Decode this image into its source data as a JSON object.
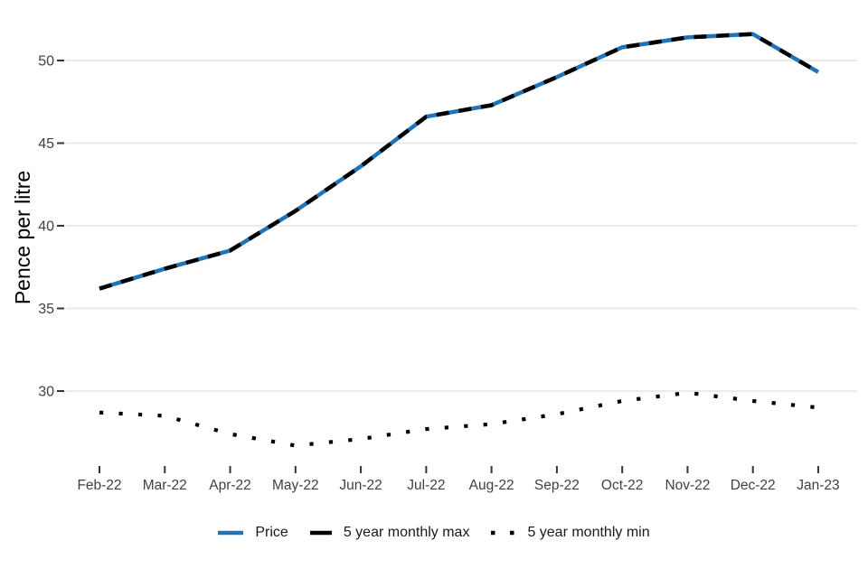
{
  "chart_data": {
    "type": "line",
    "title": "",
    "xlabel": "",
    "ylabel": "Pence per litre",
    "categories": [
      "Feb-22",
      "Mar-22",
      "Apr-22",
      "May-22",
      "Jun-22",
      "Jul-22",
      "Aug-22",
      "Sep-22",
      "Oct-22",
      "Nov-22",
      "Dec-22",
      "Jan-23"
    ],
    "series": [
      {
        "name": "Price",
        "style": "solid",
        "color": "#2173b7",
        "values": [
          36.2,
          37.4,
          38.5,
          40.9,
          43.6,
          46.6,
          47.3,
          49.0,
          50.8,
          51.4,
          51.6,
          49.3
        ]
      },
      {
        "name": "5 year monthly max",
        "style": "dashed",
        "color": "#000000",
        "values": [
          36.2,
          37.4,
          38.5,
          40.9,
          43.6,
          46.6,
          47.3,
          49.0,
          50.8,
          51.4,
          51.6,
          49.3
        ]
      },
      {
        "name": "5 year monthly min",
        "style": "dotted",
        "color": "#000000",
        "values": [
          28.7,
          28.5,
          27.4,
          26.7,
          27.1,
          27.7,
          28.0,
          28.6,
          29.4,
          29.9,
          29.4,
          29.0
        ]
      }
    ],
    "yticks": [
      30,
      35,
      40,
      45,
      50
    ],
    "ylim": [
      26.0,
      52.7
    ],
    "grid": "horizontal-only",
    "legend_position": "bottom"
  },
  "colors": {
    "price_blue": "#2173b7",
    "series_black": "#000000",
    "gridline": "#e4e4e4",
    "axis_text": "#404040",
    "tick_mark": "#333333",
    "background": "#ffffff"
  }
}
